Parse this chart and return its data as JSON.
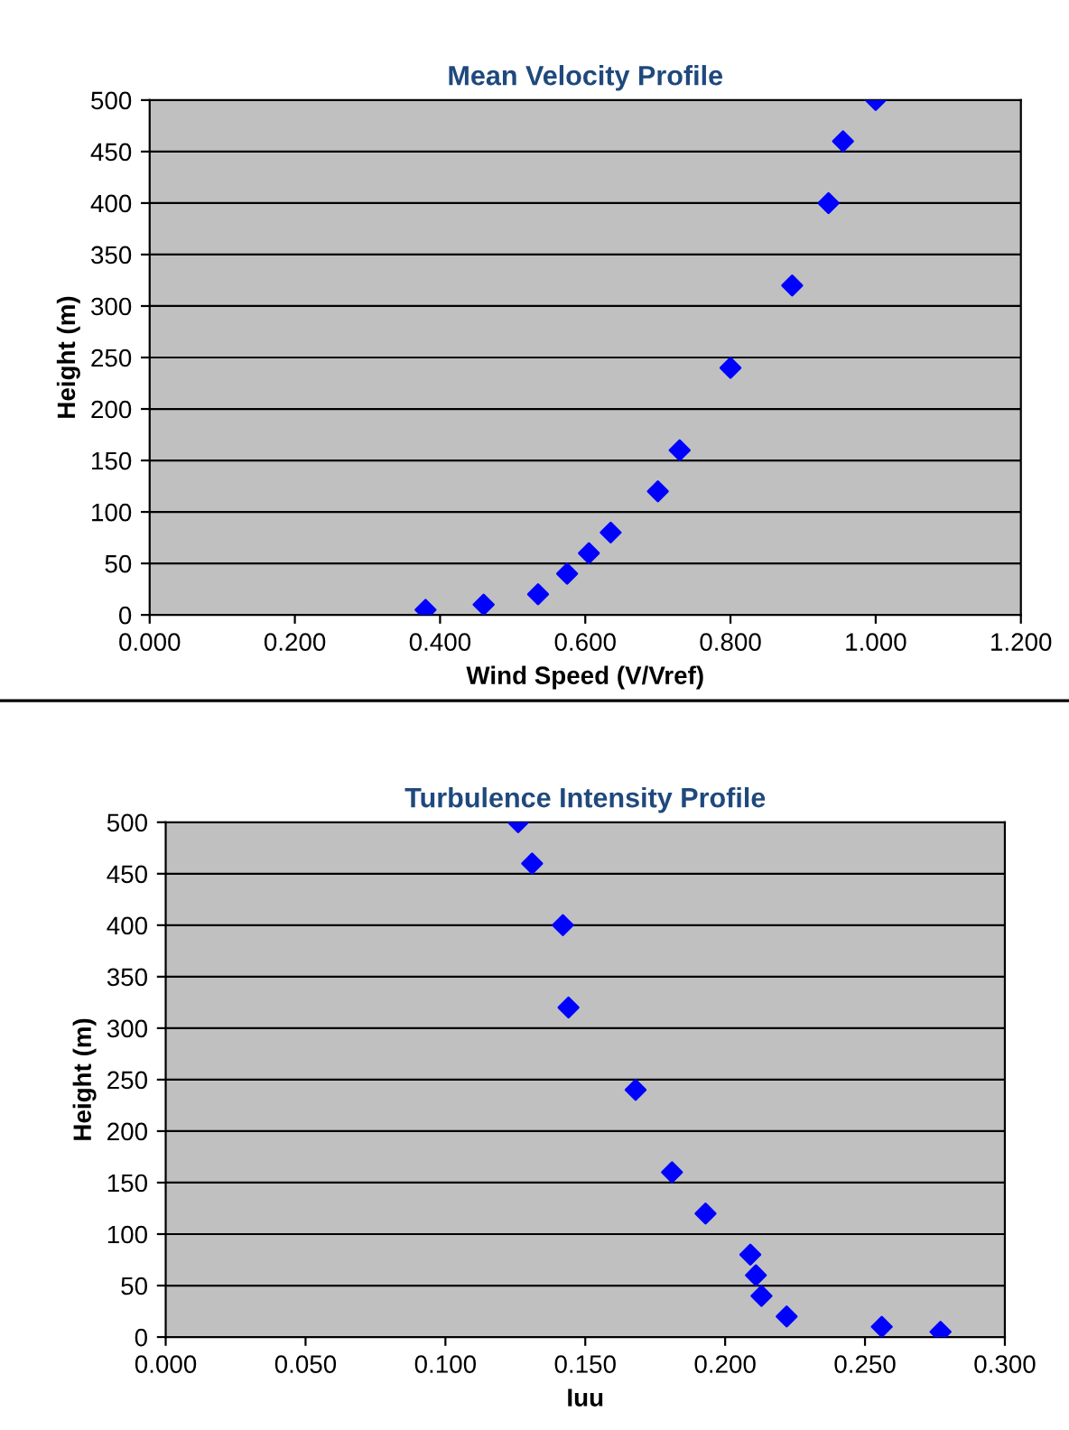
{
  "chart_data": [
    {
      "type": "scatter",
      "title": "Mean Velocity Profile",
      "xlabel": "Wind Speed (V/Vref)",
      "ylabel": "Height (m)",
      "x": [
        0.38,
        0.46,
        0.535,
        0.575,
        0.605,
        0.635,
        0.7,
        0.73,
        0.8,
        0.885,
        0.935,
        0.955,
        1.0
      ],
      "series": [
        {
          "color": "#0000ff",
          "values": [
            5,
            10,
            20,
            40,
            60,
            80,
            120,
            160,
            240,
            320,
            400,
            460,
            500
          ]
        }
      ],
      "xlim": [
        0,
        1.2
      ],
      "xticks": [
        {
          "value": 0,
          "label": "0.000"
        },
        {
          "value": 0.2,
          "label": "0.200"
        },
        {
          "value": 0.4,
          "label": "0.400"
        },
        {
          "value": 0.6,
          "label": "0.600"
        },
        {
          "value": 0.8,
          "label": "0.800"
        },
        {
          "value": 1.0,
          "label": "1.000"
        },
        {
          "value": 1.2,
          "label": "1.200"
        }
      ],
      "ylim": [
        0,
        500
      ],
      "yticks": [
        0,
        50,
        100,
        150,
        200,
        250,
        300,
        350,
        400,
        450,
        500
      ],
      "grid": "y",
      "marker": "diamond",
      "legend": false
    },
    {
      "type": "scatter",
      "title": "Turbulence Intensity Profile",
      "xlabel": "Iuu",
      "ylabel": "Height (m)",
      "x": [
        0.277,
        0.256,
        0.222,
        0.213,
        0.211,
        0.209,
        0.193,
        0.181,
        0.168,
        0.144,
        0.142,
        0.131,
        0.126
      ],
      "series": [
        {
          "color": "#0000ff",
          "values": [
            5,
            10,
            20,
            40,
            60,
            80,
            120,
            160,
            240,
            320,
            400,
            460,
            500
          ]
        }
      ],
      "xlim": [
        0,
        0.3
      ],
      "xticks": [
        {
          "value": 0,
          "label": "0.000"
        },
        {
          "value": 0.05,
          "label": "0.050"
        },
        {
          "value": 0.1,
          "label": "0.100"
        },
        {
          "value": 0.15,
          "label": "0.150"
        },
        {
          "value": 0.2,
          "label": "0.200"
        },
        {
          "value": 0.25,
          "label": "0.250"
        },
        {
          "value": 0.3,
          "label": "0.300"
        }
      ],
      "ylim": [
        0,
        500
      ],
      "yticks": [
        0,
        50,
        100,
        150,
        200,
        250,
        300,
        350,
        400,
        450,
        500
      ],
      "grid": "y",
      "marker": "diamond",
      "legend": false
    }
  ]
}
